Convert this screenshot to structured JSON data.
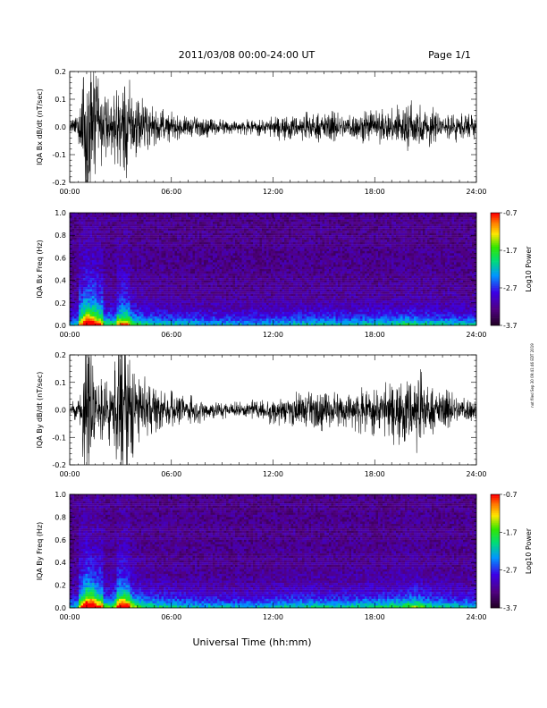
{
  "header": {
    "title": "2011/03/08  00:00-24:00 UT",
    "page": "Page 1/1"
  },
  "stamp": "not filed Sep 30 09:41:46 EDT 2019",
  "footer": {
    "xlabel": "Universal Time (hh:mm)"
  },
  "colorbar": {
    "label": "Log10 Power",
    "ticks": [
      "-0.7",
      "-1.7",
      "-2.7",
      "-3.7"
    ],
    "range": [
      -3.7,
      -0.7
    ]
  },
  "chart_data": [
    {
      "type": "line",
      "ylabel": "IQA Bx dB/dt (nT/sec)",
      "x_ticks": [
        "00:00",
        "06:00",
        "12:00",
        "18:00",
        "24:00"
      ],
      "xlim": [
        0,
        24
      ],
      "ylim": [
        -0.2,
        0.2
      ],
      "y_ticks": [
        "0.2",
        "0.1",
        "0.0",
        "-0.1",
        "-0.2"
      ],
      "envelope": {
        "hours": [
          0,
          0.5,
          0.8,
          1.0,
          1.3,
          1.6,
          2.0,
          2.5,
          3.0,
          3.3,
          3.7,
          4.2,
          5.0,
          6.0,
          7.0,
          8.0,
          9.0,
          10.0,
          11.0,
          12.0,
          13.0,
          14.0,
          15.0,
          16.0,
          17.0,
          18.0,
          19.0,
          20.0,
          20.5,
          21.0,
          22.0,
          23.0,
          24.0
        ],
        "amplitude": [
          0.02,
          0.03,
          0.14,
          0.22,
          0.22,
          0.14,
          0.08,
          0.07,
          0.12,
          0.15,
          0.1,
          0.07,
          0.05,
          0.035,
          0.03,
          0.025,
          0.02,
          0.018,
          0.02,
          0.025,
          0.035,
          0.035,
          0.04,
          0.035,
          0.04,
          0.04,
          0.05,
          0.07,
          0.06,
          0.05,
          0.04,
          0.035,
          0.03
        ]
      }
    },
    {
      "type": "heatmap",
      "ylabel": "IQA Bx Freq (Hz)",
      "x_ticks": [
        "00:00",
        "06:00",
        "12:00",
        "18:00",
        "24:00"
      ],
      "xlim": [
        0,
        24
      ],
      "ylim": [
        0,
        1.0
      ],
      "y_ticks": [
        "1.0",
        "0.8",
        "0.6",
        "0.4",
        "0.2",
        "0.0"
      ],
      "z_range": [
        -3.7,
        -0.7
      ]
    },
    {
      "type": "line",
      "ylabel": "IQA By dB/dt (nT/sec)",
      "x_ticks": [
        "00:00",
        "06:00",
        "12:00",
        "18:00",
        "24:00"
      ],
      "xlim": [
        0,
        24
      ],
      "ylim": [
        -0.2,
        0.2
      ],
      "y_ticks": [
        "0.2",
        "0.1",
        "0.0",
        "-0.1",
        "-0.2"
      ],
      "envelope": {
        "hours": [
          0,
          0.5,
          0.8,
          1.0,
          1.3,
          1.6,
          2.0,
          2.5,
          3.0,
          3.3,
          3.7,
          4.2,
          5.0,
          6.0,
          7.0,
          8.0,
          9.0,
          10.0,
          11.0,
          12.0,
          13.0,
          14.0,
          15.0,
          16.0,
          17.0,
          18.0,
          19.0,
          20.0,
          20.5,
          21.0,
          22.0,
          23.0,
          24.0
        ],
        "amplitude": [
          0.02,
          0.03,
          0.12,
          0.22,
          0.22,
          0.12,
          0.09,
          0.08,
          0.22,
          0.22,
          0.14,
          0.08,
          0.06,
          0.05,
          0.035,
          0.03,
          0.025,
          0.02,
          0.025,
          0.035,
          0.045,
          0.05,
          0.05,
          0.045,
          0.055,
          0.06,
          0.07,
          0.1,
          0.11,
          0.07,
          0.05,
          0.04,
          0.035
        ]
      }
    },
    {
      "type": "heatmap",
      "ylabel": "IQA By Freq (Hz)",
      "x_ticks": [
        "00:00",
        "06:00",
        "12:00",
        "18:00",
        "24:00"
      ],
      "xlim": [
        0,
        24
      ],
      "ylim": [
        0,
        1.0
      ],
      "y_ticks": [
        "1.0",
        "0.8",
        "0.6",
        "0.4",
        "0.2",
        "0.0"
      ],
      "z_range": [
        -3.7,
        -0.7
      ]
    }
  ]
}
